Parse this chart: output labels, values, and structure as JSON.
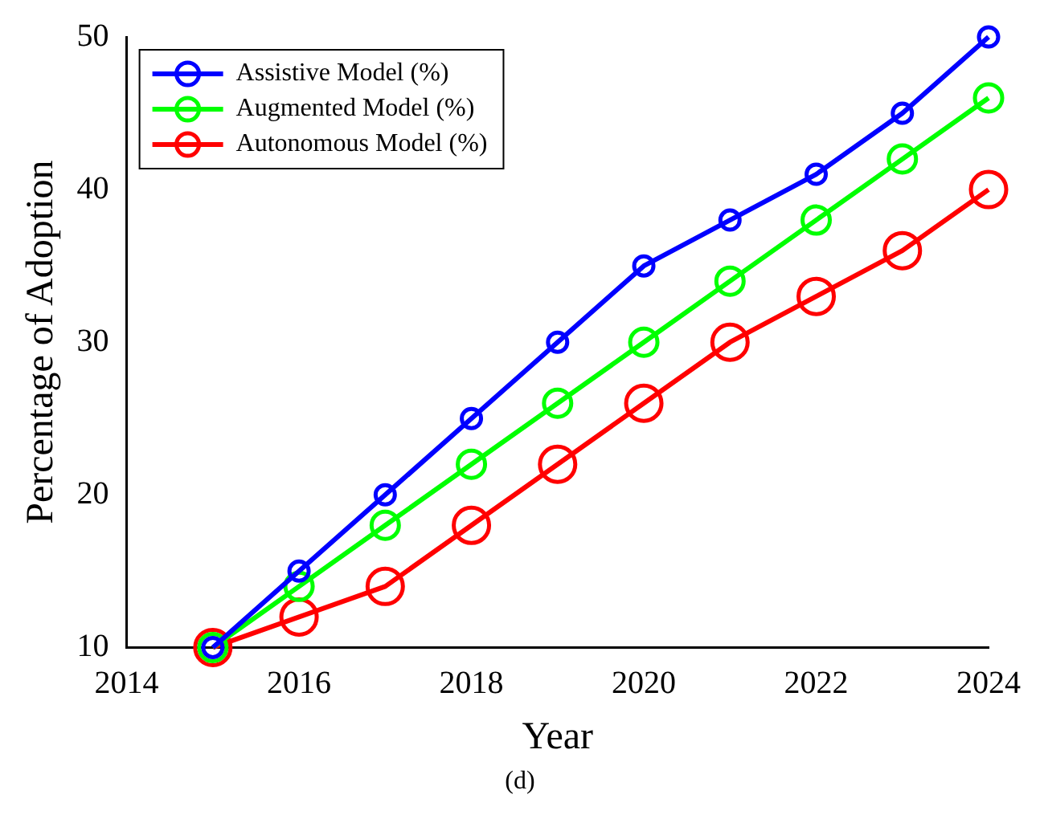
{
  "chart_data": {
    "type": "line",
    "xlabel": "Year",
    "ylabel": "Percentage of Adoption",
    "annotations": [
      "(d)"
    ],
    "x": [
      2015,
      2016,
      2017,
      2018,
      2019,
      2020,
      2021,
      2022,
      2023,
      2024
    ],
    "series": [
      {
        "name": "Assistive Model (%)",
        "color": "#0000ff",
        "values": [
          10,
          15,
          20,
          25,
          30,
          35,
          38,
          41,
          45,
          50
        ]
      },
      {
        "name": "Augmented Model (%)",
        "color": "#00ff00",
        "values": [
          10,
          14,
          18,
          22,
          26,
          30,
          34,
          38,
          42,
          46
        ]
      },
      {
        "name": "Autonomous Model (%)",
        "color": "#ff0000",
        "values": [
          10,
          12,
          14,
          18,
          22,
          26,
          30,
          33,
          36,
          40
        ]
      }
    ],
    "xlim": [
      2014,
      2024
    ],
    "xticks": [
      2014,
      2016,
      2018,
      2020,
      2022,
      2024
    ],
    "ylim": [
      10,
      50
    ],
    "yticks": [
      10,
      20,
      30,
      40,
      50
    ],
    "grid": false,
    "legend": "top left",
    "marker": "circle",
    "line_style": "solid"
  }
}
